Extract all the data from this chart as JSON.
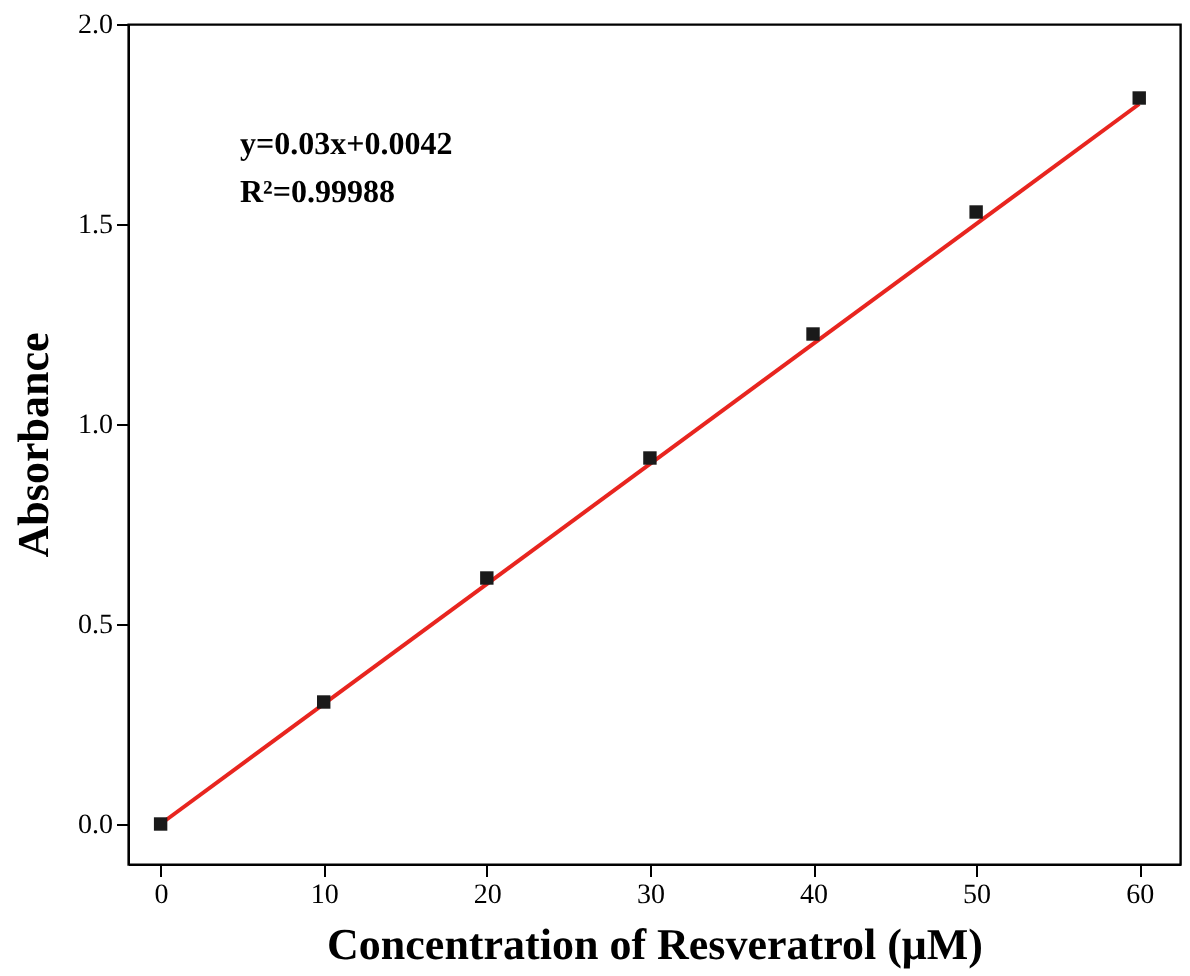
{
  "chart_data": {
    "type": "scatter",
    "xlabel": "Concentration of Resveratrol (μM)",
    "ylabel": "Absorbance",
    "series": [
      {
        "color": "#1a1a1a",
        "marker": "square",
        "x": [
          0,
          10,
          20,
          30,
          40,
          50,
          60
        ],
        "values": [
          0.0,
          0.305,
          0.615,
          0.915,
          1.225,
          1.53,
          1.815
        ]
      },
      {
        "type": "line",
        "color": "#e8251f",
        "marker": "none",
        "line_style": "solid",
        "x": [
          0,
          60
        ],
        "values": [
          0.0,
          1.8
        ]
      }
    ],
    "annotations": [
      "y=0.03x+0.0042",
      "R²=0.99988"
    ],
    "xlim": [
      -2,
      62.5
    ],
    "ylim": [
      -0.1,
      2.0
    ],
    "xticks": [
      0,
      10,
      20,
      30,
      40,
      50,
      60
    ],
    "yticks": [
      {
        "value": 0.0,
        "label": "0.0"
      },
      {
        "value": 0.5,
        "label": "0.5"
      },
      {
        "value": 1.0,
        "label": "1.0"
      },
      {
        "value": 1.5,
        "label": "1.5"
      },
      {
        "value": 2.0,
        "label": "2.0"
      }
    ],
    "grid": false
  }
}
